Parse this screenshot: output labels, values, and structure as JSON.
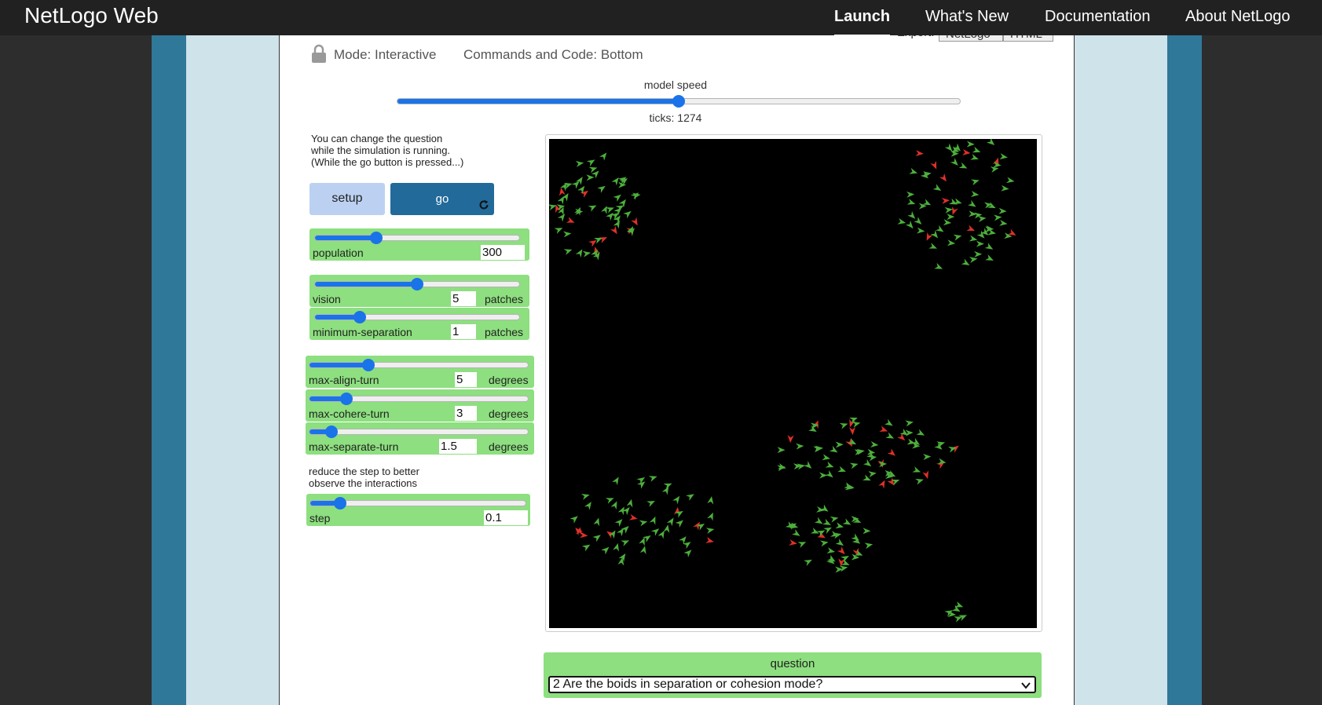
{
  "nav": {
    "brand": "NetLogo Web",
    "links": [
      "Launch",
      "What's New",
      "Documentation",
      "About NetLogo"
    ],
    "active": "Launch"
  },
  "export": {
    "label": "Export:",
    "buttons": [
      "NetLogo",
      "HTML"
    ]
  },
  "mode": {
    "mode_text": "Mode: Interactive",
    "commands_text": "Commands and Code: Bottom",
    "icon": "lock-icon"
  },
  "speed": {
    "label": "model speed",
    "value_fraction": 0.5,
    "ticks_text": "ticks: 1274"
  },
  "note": {
    "lines": [
      "You can change the question",
      "while the simulation is running.",
      "(While the go button is pressed...)"
    ]
  },
  "buttons": {
    "setup": "setup",
    "go": "go",
    "go_icon": "refresh-icon"
  },
  "sliders": [
    {
      "name": "population",
      "value": "300",
      "unit": "",
      "fraction": 0.3
    },
    {
      "name": "vision",
      "value": "5",
      "unit": "patches",
      "fraction": 0.5
    },
    {
      "name": "minimum-separation",
      "value": "1",
      "unit": "patches",
      "fraction": 0.22
    },
    {
      "name": "max-align-turn",
      "value": "5",
      "unit": "degrees",
      "fraction": 0.27
    },
    {
      "name": "max-cohere-turn",
      "value": "3",
      "unit": "degrees",
      "fraction": 0.17
    },
    {
      "name": "max-separate-turn",
      "value": "1.5",
      "unit": "degrees",
      "fraction": 0.1
    },
    {
      "name": "step",
      "value": "0.1",
      "unit": "",
      "fraction": 0.14
    }
  ],
  "note2": {
    "lines": [
      "reduce the step to better",
      "observe the interactions"
    ]
  },
  "question": {
    "label": "question",
    "selected": "2 Are the boids in separation or cohesion mode?"
  },
  "colors": {
    "agent_green": "#4caf3c",
    "agent_red": "#e0302a",
    "widget_green": "#8ddf7f",
    "accent": "#1a73e8"
  }
}
